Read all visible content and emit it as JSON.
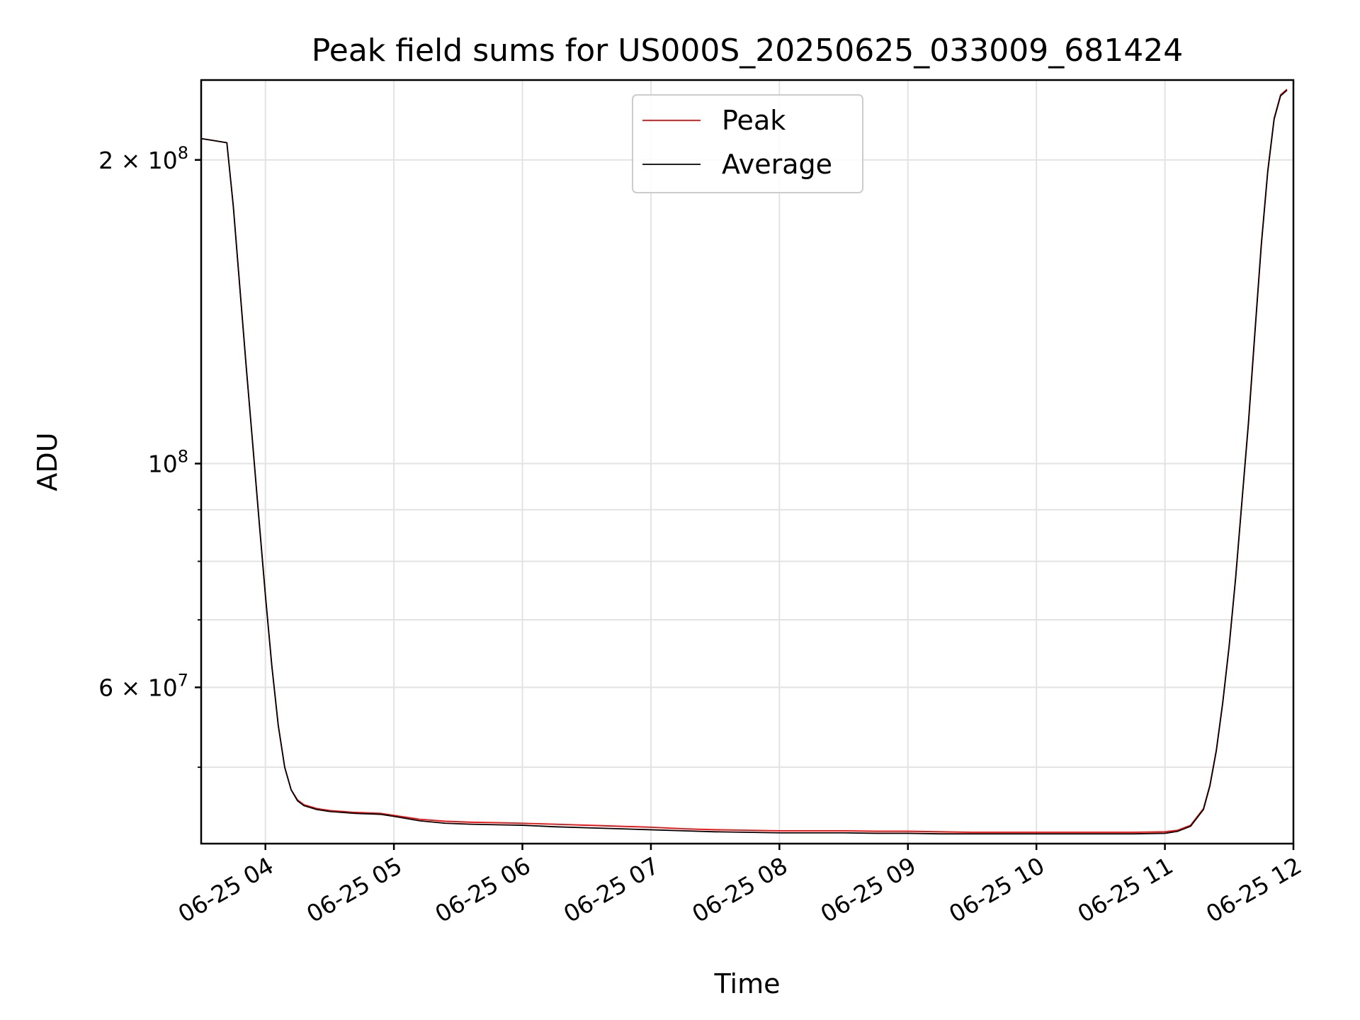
{
  "chart_data": {
    "type": "line",
    "title": "Peak field sums for US000S_20250625_033009_681424",
    "xlabel": "Time",
    "ylabel": "ADU",
    "y_scale": "log",
    "grid": true,
    "legend_position": "top-center",
    "x_unit": "hours",
    "xlim": [
      3.5,
      12.0
    ],
    "ylim": [
      42000000,
      240000000
    ],
    "x_ticks": [
      {
        "value": 4,
        "label": "06-25 04"
      },
      {
        "value": 5,
        "label": "06-25 05"
      },
      {
        "value": 6,
        "label": "06-25 06"
      },
      {
        "value": 7,
        "label": "06-25 07"
      },
      {
        "value": 8,
        "label": "06-25 08"
      },
      {
        "value": 9,
        "label": "06-25 09"
      },
      {
        "value": 10,
        "label": "06-25 10"
      },
      {
        "value": 11,
        "label": "06-25 11"
      },
      {
        "value": 12,
        "label": "06-25 12"
      }
    ],
    "y_major_ticks": [
      {
        "value": 200000000,
        "mantissa": "2",
        "exponent": "8"
      },
      {
        "value": 100000000,
        "mantissa": "",
        "exponent": "8"
      },
      {
        "value": 60000000,
        "mantissa": "6",
        "exponent": "7"
      }
    ],
    "y_minor_ticks": [
      50000000,
      70000000,
      80000000,
      90000000,
      300000000
    ],
    "series": [
      {
        "name": "Peak",
        "color": "#ff0000",
        "x": [
          3.5,
          3.6,
          3.7,
          3.75,
          3.8,
          3.85,
          3.9,
          3.95,
          4.0,
          4.05,
          4.1,
          4.15,
          4.2,
          4.25,
          4.3,
          4.4,
          4.5,
          4.6,
          4.7,
          4.8,
          4.9,
          5.0,
          5.2,
          5.4,
          5.6,
          5.8,
          6.0,
          6.25,
          6.5,
          6.75,
          7.0,
          7.25,
          7.5,
          7.75,
          8.0,
          8.25,
          8.5,
          8.75,
          9.0,
          9.25,
          9.5,
          9.75,
          10.0,
          10.25,
          10.5,
          10.75,
          11.0,
          11.1,
          11.2,
          11.3,
          11.35,
          11.4,
          11.45,
          11.5,
          11.55,
          11.6,
          11.65,
          11.7,
          11.75,
          11.8,
          11.85,
          11.9,
          11.95
        ],
        "values": [
          210000000,
          209000000,
          208000000,
          180000000,
          150000000,
          125000000,
          105000000,
          88000000,
          74000000,
          63000000,
          55000000,
          50000000,
          47500000,
          46400000,
          45900000,
          45500000,
          45300000,
          45200000,
          45100000,
          45050000,
          45000000,
          44800000,
          44400000,
          44200000,
          44100000,
          44050000,
          44000000,
          43900000,
          43800000,
          43700000,
          43600000,
          43450000,
          43350000,
          43300000,
          43250000,
          43250000,
          43250000,
          43200000,
          43200000,
          43150000,
          43100000,
          43100000,
          43100000,
          43100000,
          43100000,
          43100000,
          43150000,
          43300000,
          43800000,
          45500000,
          48000000,
          52000000,
          58000000,
          66000000,
          77000000,
          92000000,
          110000000,
          135000000,
          165000000,
          195000000,
          220000000,
          232000000,
          235000000
        ]
      },
      {
        "name": "Average",
        "color": "#000000",
        "x": [
          3.5,
          3.6,
          3.7,
          3.75,
          3.8,
          3.85,
          3.9,
          3.95,
          4.0,
          4.05,
          4.1,
          4.15,
          4.2,
          4.25,
          4.3,
          4.4,
          4.5,
          4.6,
          4.7,
          4.8,
          4.9,
          5.0,
          5.2,
          5.4,
          5.6,
          5.8,
          6.0,
          6.25,
          6.5,
          6.75,
          7.0,
          7.25,
          7.5,
          7.75,
          8.0,
          8.25,
          8.5,
          8.75,
          9.0,
          9.25,
          9.5,
          9.75,
          10.0,
          10.25,
          10.5,
          10.75,
          11.0,
          11.1,
          11.2,
          11.3,
          11.35,
          11.4,
          11.45,
          11.5,
          11.55,
          11.6,
          11.65,
          11.7,
          11.75,
          11.8,
          11.85,
          11.9,
          11.95
        ],
        "values": [
          210000000,
          209000000,
          208000000,
          180000000,
          150000000,
          125000000,
          105000000,
          88000000,
          74000000,
          63000000,
          55000000,
          50000000,
          47500000,
          46300000,
          45800000,
          45400000,
          45200000,
          45100000,
          45000000,
          44950000,
          44900000,
          44700000,
          44250000,
          44000000,
          43900000,
          43850000,
          43800000,
          43650000,
          43550000,
          43450000,
          43350000,
          43250000,
          43150000,
          43100000,
          43050000,
          43050000,
          43050000,
          43000000,
          43000000,
          42950000,
          42950000,
          42950000,
          42950000,
          42950000,
          42950000,
          42950000,
          43000000,
          43200000,
          43700000,
          45400000,
          47900000,
          51900000,
          57900000,
          65900000,
          76900000,
          91900000,
          109500000,
          134500000,
          164500000,
          194500000,
          219500000,
          231500000,
          234500000
        ]
      }
    ]
  }
}
